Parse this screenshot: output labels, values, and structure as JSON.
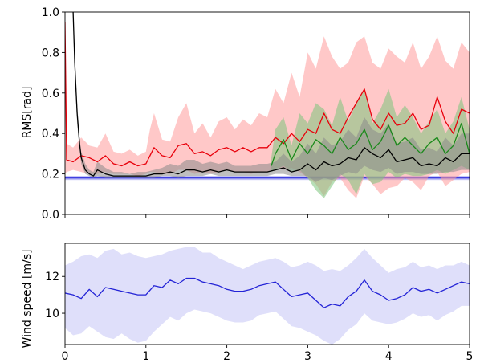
{
  "chart_data": [
    {
      "type": "line",
      "title": "",
      "xlabel": "",
      "ylabel": "RMS[rad]",
      "xlim": [
        0,
        5
      ],
      "ylim": [
        0,
        1.0
      ],
      "yticks": [
        "0.0",
        "0.2",
        "0.4",
        "0.6",
        "0.8",
        "1.0"
      ],
      "grid": false,
      "series": [
        {
          "color": "#e8000b",
          "band_color": "#ff9a9a",
          "x": [
            0.0,
            0.02,
            0.1,
            0.2,
            0.3,
            0.4,
            0.5,
            0.6,
            0.7,
            0.8,
            0.9,
            1.0,
            1.05,
            1.1,
            1.2,
            1.3,
            1.4,
            1.5,
            1.6,
            1.7,
            1.8,
            1.9,
            2.0,
            2.1,
            2.2,
            2.3,
            2.4,
            2.5,
            2.6,
            2.7,
            2.8,
            2.9,
            3.0,
            3.1,
            3.2,
            3.3,
            3.4,
            3.5,
            3.6,
            3.7,
            3.8,
            3.9,
            4.0,
            4.1,
            4.2,
            4.3,
            4.4,
            4.5,
            4.6,
            4.7,
            4.8,
            4.9,
            5.0
          ],
          "y": [
            0.95,
            0.27,
            0.26,
            0.29,
            0.28,
            0.26,
            0.29,
            0.25,
            0.24,
            0.26,
            0.24,
            0.25,
            0.29,
            0.33,
            0.29,
            0.28,
            0.34,
            0.35,
            0.3,
            0.31,
            0.29,
            0.32,
            0.33,
            0.31,
            0.33,
            0.31,
            0.33,
            0.33,
            0.38,
            0.35,
            0.4,
            0.36,
            0.42,
            0.4,
            0.5,
            0.42,
            0.4,
            0.48,
            0.55,
            0.62,
            0.47,
            0.42,
            0.5,
            0.44,
            0.45,
            0.5,
            0.42,
            0.44,
            0.58,
            0.46,
            0.4,
            0.52,
            0.5
          ],
          "lower": [
            0.2,
            0.21,
            0.22,
            0.21,
            0.2,
            0.2,
            0.21,
            0.2,
            0.2,
            0.2,
            0.19,
            0.2,
            0.21,
            0.21,
            0.2,
            0.2,
            0.22,
            0.22,
            0.2,
            0.21,
            0.2,
            0.21,
            0.22,
            0.21,
            0.21,
            0.2,
            0.21,
            0.21,
            0.23,
            0.22,
            0.23,
            0.21,
            0.18,
            0.15,
            0.09,
            0.16,
            0.18,
            0.12,
            0.08,
            0.19,
            0.15,
            0.1,
            0.13,
            0.14,
            0.18,
            0.16,
            0.12,
            0.19,
            0.21,
            0.14,
            0.17,
            0.2,
            0.21
          ],
          "upper": [
            1.0,
            0.35,
            0.33,
            0.38,
            0.34,
            0.33,
            0.4,
            0.31,
            0.3,
            0.32,
            0.29,
            0.31,
            0.42,
            0.5,
            0.37,
            0.36,
            0.48,
            0.55,
            0.4,
            0.45,
            0.38,
            0.46,
            0.48,
            0.42,
            0.47,
            0.44,
            0.5,
            0.48,
            0.62,
            0.55,
            0.7,
            0.58,
            0.8,
            0.72,
            0.88,
            0.78,
            0.72,
            0.75,
            0.85,
            0.88,
            0.75,
            0.72,
            0.82,
            0.78,
            0.75,
            0.85,
            0.72,
            0.78,
            0.88,
            0.76,
            0.72,
            0.85,
            0.8
          ]
        },
        {
          "color": "#1b8a1b",
          "band_color": "#7cc47c",
          "x": [
            2.55,
            2.6,
            2.7,
            2.8,
            2.9,
            3.0,
            3.1,
            3.2,
            3.3,
            3.4,
            3.5,
            3.6,
            3.7,
            3.8,
            3.9,
            4.0,
            4.1,
            4.2,
            4.3,
            4.4,
            4.5,
            4.6,
            4.7,
            4.8,
            4.9,
            5.0
          ],
          "y": [
            0.24,
            0.3,
            0.37,
            0.27,
            0.35,
            0.3,
            0.37,
            0.34,
            0.3,
            0.38,
            0.32,
            0.35,
            0.42,
            0.32,
            0.36,
            0.44,
            0.34,
            0.38,
            0.34,
            0.3,
            0.35,
            0.38,
            0.3,
            0.34,
            0.45,
            0.3
          ],
          "lower": [
            0.21,
            0.22,
            0.24,
            0.21,
            0.22,
            0.18,
            0.12,
            0.08,
            0.14,
            0.2,
            0.17,
            0.1,
            0.2,
            0.15,
            0.16,
            0.21,
            0.18,
            0.2,
            0.19,
            0.19,
            0.2,
            0.22,
            0.2,
            0.22,
            0.24,
            0.22
          ],
          "upper": [
            0.28,
            0.42,
            0.48,
            0.34,
            0.5,
            0.45,
            0.55,
            0.52,
            0.44,
            0.58,
            0.46,
            0.55,
            0.62,
            0.45,
            0.52,
            0.62,
            0.48,
            0.54,
            0.48,
            0.4,
            0.46,
            0.52,
            0.4,
            0.46,
            0.58,
            0.42
          ]
        },
        {
          "color": "#000000",
          "band_color": "#8a8a8a",
          "x": [
            0.1,
            0.12,
            0.15,
            0.18,
            0.2,
            0.25,
            0.3,
            0.35,
            0.4,
            0.5,
            0.6,
            0.7,
            0.8,
            0.9,
            1.0,
            1.1,
            1.2,
            1.3,
            1.4,
            1.5,
            1.6,
            1.7,
            1.8,
            1.9,
            2.0,
            2.1,
            2.2,
            2.3,
            2.4,
            2.5,
            2.6,
            2.7,
            2.8,
            2.9,
            3.0,
            3.1,
            3.2,
            3.3,
            3.4,
            3.5,
            3.6,
            3.7,
            3.8,
            3.9,
            4.0,
            4.1,
            4.2,
            4.3,
            4.4,
            4.5,
            4.6,
            4.7,
            4.8,
            4.9,
            5.0
          ],
          "y": [
            1.0,
            0.75,
            0.5,
            0.35,
            0.28,
            0.22,
            0.2,
            0.19,
            0.22,
            0.2,
            0.19,
            0.19,
            0.19,
            0.19,
            0.19,
            0.2,
            0.2,
            0.21,
            0.2,
            0.22,
            0.22,
            0.21,
            0.22,
            0.21,
            0.22,
            0.21,
            0.21,
            0.21,
            0.21,
            0.21,
            0.22,
            0.23,
            0.21,
            0.22,
            0.25,
            0.22,
            0.26,
            0.24,
            0.25,
            0.28,
            0.27,
            0.33,
            0.3,
            0.28,
            0.32,
            0.26,
            0.27,
            0.28,
            0.24,
            0.25,
            0.24,
            0.28,
            0.26,
            0.3,
            0.3
          ],
          "lower": [
            1.0,
            0.7,
            0.45,
            0.32,
            0.25,
            0.2,
            0.19,
            0.18,
            0.19,
            0.18,
            0.18,
            0.18,
            0.18,
            0.18,
            0.18,
            0.18,
            0.19,
            0.19,
            0.18,
            0.19,
            0.19,
            0.19,
            0.2,
            0.19,
            0.19,
            0.19,
            0.19,
            0.19,
            0.19,
            0.19,
            0.2,
            0.2,
            0.19,
            0.19,
            0.19,
            0.16,
            0.18,
            0.17,
            0.19,
            0.21,
            0.2,
            0.24,
            0.22,
            0.21,
            0.23,
            0.2,
            0.21,
            0.21,
            0.2,
            0.2,
            0.2,
            0.21,
            0.21,
            0.22,
            0.22
          ],
          "upper": [
            1.0,
            0.8,
            0.55,
            0.38,
            0.31,
            0.25,
            0.22,
            0.21,
            0.26,
            0.23,
            0.21,
            0.21,
            0.2,
            0.21,
            0.21,
            0.22,
            0.23,
            0.25,
            0.24,
            0.27,
            0.27,
            0.25,
            0.26,
            0.25,
            0.26,
            0.24,
            0.24,
            0.24,
            0.25,
            0.25,
            0.26,
            0.3,
            0.26,
            0.29,
            0.35,
            0.3,
            0.38,
            0.34,
            0.36,
            0.42,
            0.38,
            0.48,
            0.42,
            0.4,
            0.45,
            0.35,
            0.36,
            0.38,
            0.32,
            0.33,
            0.31,
            0.38,
            0.34,
            0.4,
            0.4
          ]
        }
      ],
      "reference_band": {
        "color": "#3f3fe0",
        "band_color": "#b0b0f4",
        "y": 0.18,
        "lower": 0.17,
        "upper": 0.19
      }
    },
    {
      "type": "line",
      "title": "",
      "xlabel": "",
      "ylabel": "Wind speed [m/s]",
      "xlim": [
        0,
        5
      ],
      "ylim": [
        8.3,
        13.8
      ],
      "xticks": [
        "0",
        "1",
        "2",
        "3",
        "4",
        "5"
      ],
      "yticks": [
        "10",
        "12"
      ],
      "grid": false,
      "series": [
        {
          "color": "#2323d6",
          "band_color": "#c4c4f6",
          "x": [
            0.0,
            0.1,
            0.2,
            0.3,
            0.4,
            0.5,
            0.6,
            0.7,
            0.8,
            0.9,
            1.0,
            1.1,
            1.2,
            1.3,
            1.4,
            1.5,
            1.6,
            1.7,
            1.8,
            1.9,
            2.0,
            2.1,
            2.2,
            2.3,
            2.4,
            2.5,
            2.6,
            2.7,
            2.8,
            2.9,
            3.0,
            3.1,
            3.2,
            3.3,
            3.4,
            3.5,
            3.6,
            3.7,
            3.8,
            3.9,
            4.0,
            4.1,
            4.2,
            4.3,
            4.4,
            4.5,
            4.6,
            4.7,
            4.8,
            4.9,
            5.0
          ],
          "y": [
            11.1,
            11.0,
            10.8,
            11.3,
            10.9,
            11.4,
            11.3,
            11.2,
            11.1,
            11.0,
            11.0,
            11.5,
            11.4,
            11.8,
            11.6,
            11.9,
            11.9,
            11.7,
            11.6,
            11.5,
            11.3,
            11.2,
            11.2,
            11.3,
            11.5,
            11.6,
            11.7,
            11.3,
            10.9,
            11.0,
            11.1,
            10.7,
            10.3,
            10.5,
            10.4,
            10.9,
            11.2,
            11.8,
            11.2,
            11.0,
            10.7,
            10.8,
            11.0,
            11.4,
            11.2,
            11.3,
            11.1,
            11.3,
            11.5,
            11.7,
            11.6
          ],
          "lower": [
            9.2,
            8.8,
            8.9,
            9.3,
            9.0,
            8.7,
            8.6,
            8.9,
            8.6,
            8.4,
            8.5,
            9.0,
            9.4,
            9.8,
            9.6,
            10.0,
            10.2,
            10.1,
            10.0,
            9.8,
            9.6,
            9.5,
            9.5,
            9.6,
            9.9,
            10.0,
            10.1,
            9.7,
            9.3,
            9.2,
            9.0,
            8.8,
            8.5,
            8.3,
            8.6,
            9.1,
            9.4,
            10.0,
            9.6,
            9.5,
            9.4,
            9.5,
            9.7,
            10.0,
            9.8,
            9.9,
            9.6,
            9.9,
            10.1,
            10.4,
            10.4
          ],
          "upper": [
            12.6,
            12.8,
            13.1,
            13.2,
            13.0,
            13.4,
            13.5,
            13.2,
            13.3,
            13.1,
            13.0,
            13.1,
            13.2,
            13.4,
            13.5,
            13.6,
            13.6,
            13.3,
            13.3,
            13.0,
            12.8,
            12.6,
            12.4,
            12.6,
            12.8,
            12.9,
            13.0,
            12.8,
            12.5,
            12.6,
            12.8,
            12.6,
            12.3,
            12.4,
            12.3,
            12.6,
            13.0,
            13.5,
            13.0,
            12.6,
            12.2,
            12.4,
            12.5,
            12.8,
            12.5,
            12.6,
            12.4,
            12.6,
            12.6,
            12.8,
            12.6
          ]
        }
      ]
    }
  ]
}
